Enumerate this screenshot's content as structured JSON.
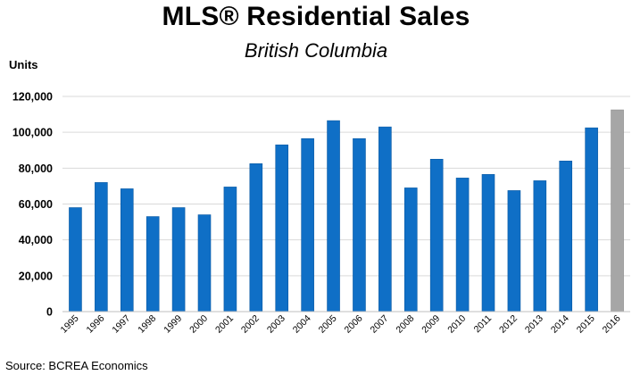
{
  "title": "MLS® Residential Sales",
  "subtitle": "British Columbia",
  "source": "Source: BCREA Economics",
  "colors": {
    "bar": "#0f6fc6",
    "bar_forecast": "#a6a6a6",
    "grid": "#d9d9d9"
  },
  "chart_data": {
    "type": "bar",
    "title": "MLS® Residential Sales",
    "subtitle": "British Columbia",
    "ylabel": "Units",
    "xlabel": "",
    "ylim": [
      0,
      120000
    ],
    "yticks": [
      0,
      20000,
      40000,
      60000,
      80000,
      100000,
      120000
    ],
    "ytick_labels": [
      "0",
      "20,000",
      "40,000",
      "60,000",
      "80,000",
      "100,000",
      "120,000"
    ],
    "grid": true,
    "categories": [
      "1995",
      "1996",
      "1997",
      "1998",
      "1999",
      "2000",
      "2001",
      "2002",
      "2003",
      "2004",
      "2005",
      "2006",
      "2007",
      "2008",
      "2009",
      "2010",
      "2011",
      "2012",
      "2013",
      "2014",
      "2015",
      "2016"
    ],
    "values": [
      58000,
      72000,
      68500,
      53000,
      58000,
      54000,
      69500,
      82500,
      93000,
      96500,
      106500,
      96500,
      103000,
      69000,
      85000,
      74500,
      76500,
      67500,
      73000,
      84000,
      102500,
      112500
    ],
    "highlight_category": "2016"
  }
}
